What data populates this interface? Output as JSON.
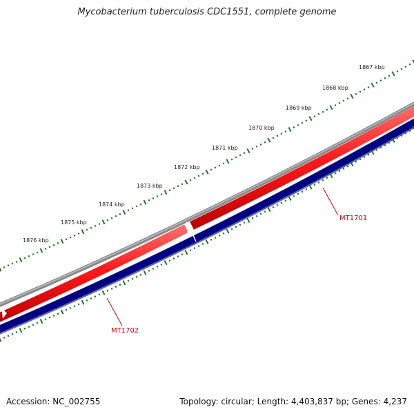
{
  "map": {
    "title": "Mycobacterium tuberculosis CDC1551, complete genome",
    "accession_text": "Accession: NC_002755",
    "summary_text": "Topology: circular; Length: 4,403,837 bp; Genes: 4,237",
    "kbp_labels": [
      "1867 kbp",
      "1868 kbp",
      "1869 kbp",
      "1870 kbp",
      "1871 kbp",
      "1872 kbp",
      "1873 kbp",
      "1874 kbp",
      "1875 kbp",
      "1876 kbp"
    ],
    "genes": [
      {
        "name": "MT1701",
        "strand": "reverse"
      },
      {
        "name": "MT1702",
        "strand": "reverse"
      }
    ],
    "colors": {
      "backbone": "#7a7a7a",
      "forward_track": "#ee0000",
      "reverse_track": "#000080",
      "reverse_track_outline": "#5555aa",
      "tick": "#1a7a1a",
      "gene_label": "#cc0000"
    }
  }
}
